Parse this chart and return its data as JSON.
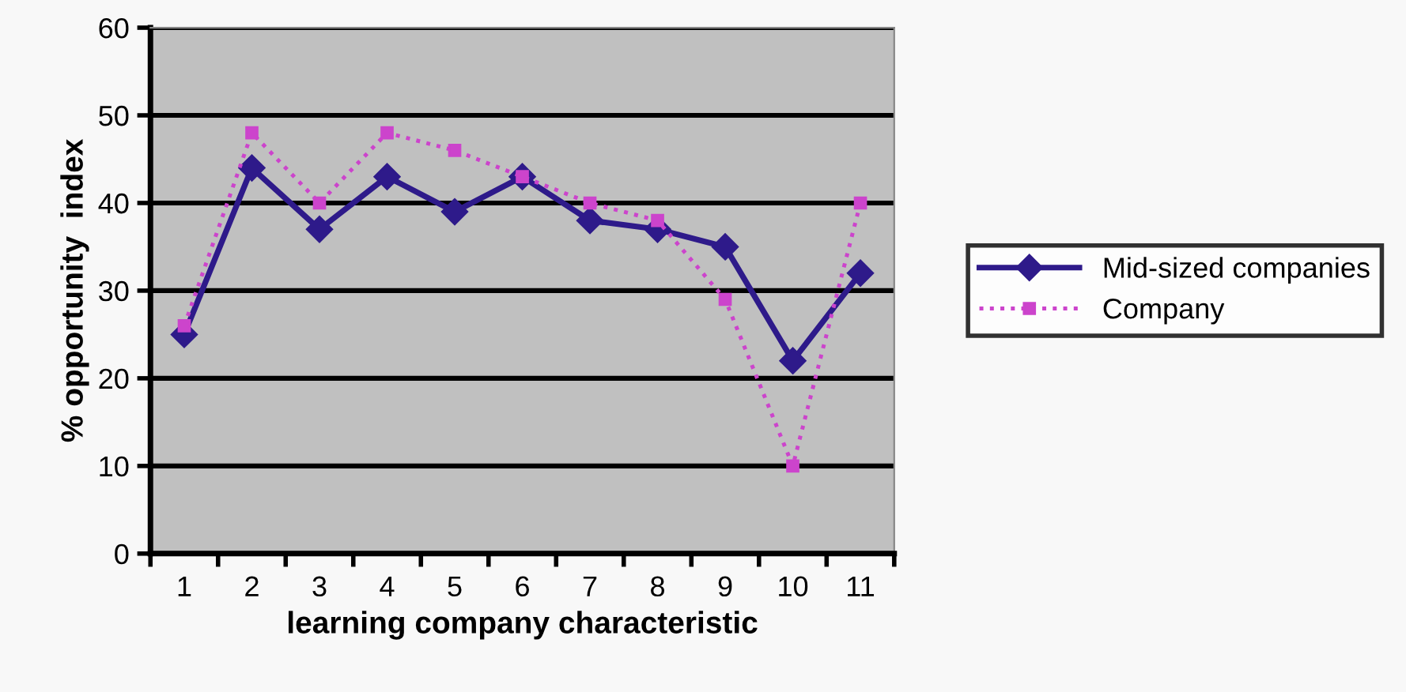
{
  "chart_data": {
    "type": "line",
    "xlabel": "learning company characteristic",
    "ylabel": "% opportunity  index",
    "categories": [
      "1",
      "2",
      "3",
      "4",
      "5",
      "6",
      "7",
      "8",
      "9",
      "10",
      "11"
    ],
    "ylim": [
      0,
      60
    ],
    "yticks": [
      0,
      10,
      20,
      30,
      40,
      50,
      60
    ],
    "grid": "y",
    "legend": "right",
    "series": [
      {
        "name": "Mid-sized companies",
        "color": "#2e1a8a",
        "marker": "diamond",
        "line_style": "solid",
        "values": [
          25,
          44,
          37,
          43,
          39,
          43,
          38,
          37,
          35,
          22,
          32
        ]
      },
      {
        "name": "Company",
        "color": "#cc44cc",
        "marker": "square",
        "line_style": "dotted",
        "values": [
          26,
          48,
          40,
          48,
          46,
          43,
          40,
          38,
          29,
          10,
          40
        ]
      }
    ]
  }
}
